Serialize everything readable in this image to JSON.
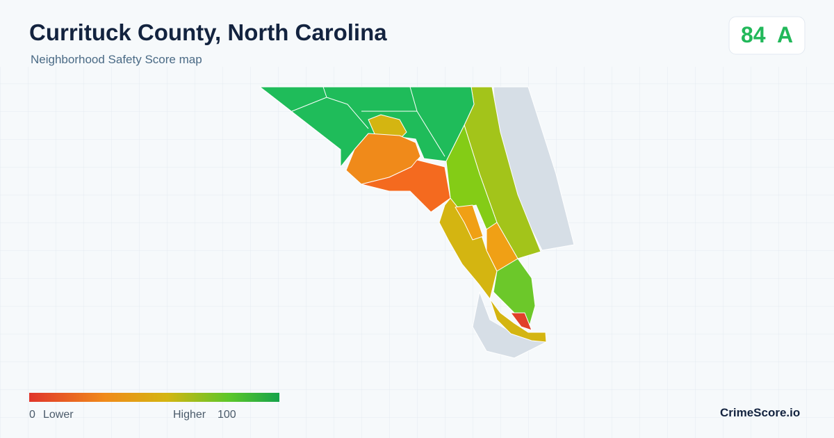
{
  "header": {
    "title": "Currituck County, North Carolina",
    "subtitle": "Neighborhood Safety Score map"
  },
  "score": {
    "value": 84,
    "grade": "A"
  },
  "legend": {
    "min": 0,
    "min_label": "Lower",
    "max_label": "Higher",
    "max": 100
  },
  "brand": "CrimeScore.io"
}
